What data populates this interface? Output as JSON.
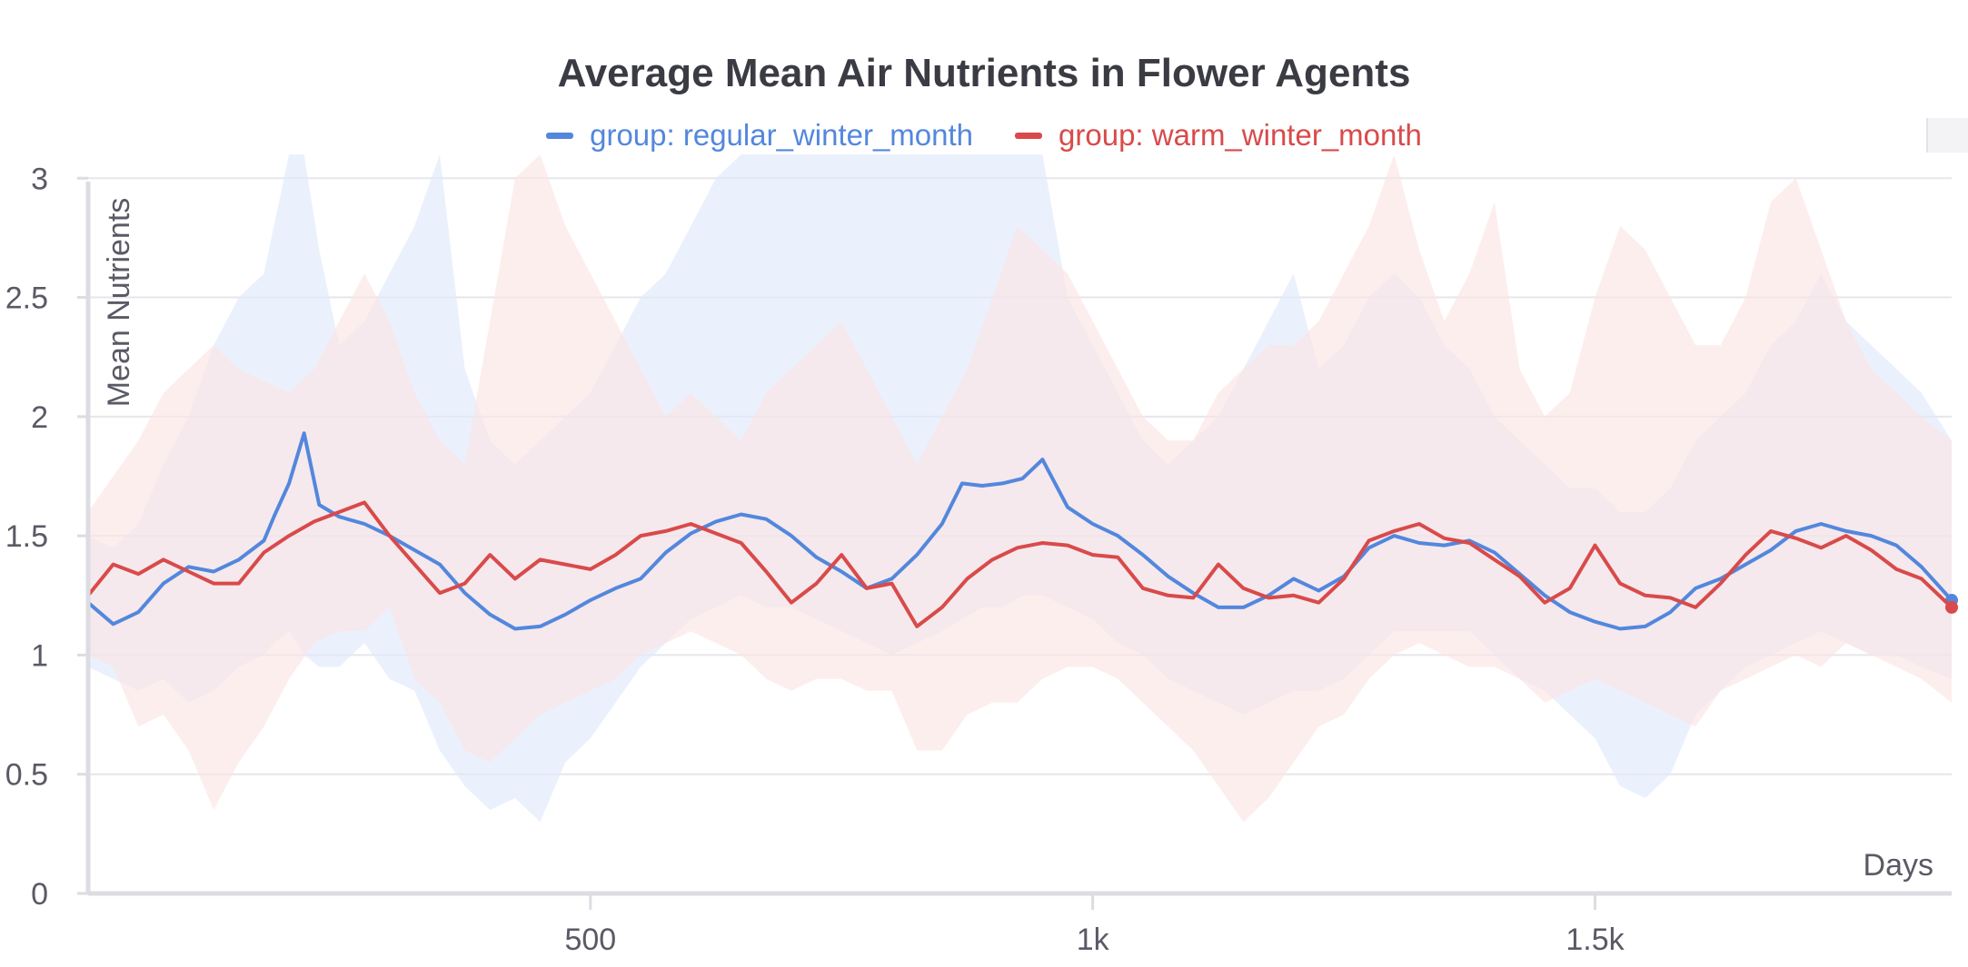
{
  "chart_data": {
    "type": "line",
    "title": "Average Mean Air Nutrients in Flower Agents",
    "xlabel": "Days",
    "ylabel": "Mean Nutrients",
    "xlim": [
      0,
      1855
    ],
    "ylim": [
      0,
      3.1
    ],
    "x_ticks": [
      {
        "value": 500,
        "label": "500"
      },
      {
        "value": 1000,
        "label": "1k"
      },
      {
        "value": 1500,
        "label": "1.5k"
      }
    ],
    "y_ticks": [
      {
        "value": 0,
        "label": "0"
      },
      {
        "value": 0.5,
        "label": "0.5"
      },
      {
        "value": 1,
        "label": "1"
      },
      {
        "value": 1.5,
        "label": "1.5"
      },
      {
        "value": 2,
        "label": "2"
      },
      {
        "value": 2.5,
        "label": "2.5"
      },
      {
        "value": 3,
        "label": "3"
      }
    ],
    "grid": true,
    "legend_position": "top-center",
    "series": [
      {
        "name": "group: regular_winter_month",
        "color": "#5387dd",
        "band_color": "#dfe8fa",
        "x": [
          0,
          25,
          50,
          75,
          100,
          125,
          150,
          175,
          185,
          200,
          215,
          230,
          250,
          275,
          300,
          325,
          350,
          375,
          400,
          425,
          450,
          475,
          500,
          525,
          550,
          575,
          600,
          625,
          650,
          675,
          700,
          725,
          750,
          775,
          800,
          825,
          850,
          870,
          890,
          910,
          930,
          950,
          975,
          1000,
          1025,
          1050,
          1075,
          1100,
          1125,
          1150,
          1175,
          1200,
          1225,
          1250,
          1275,
          1300,
          1325,
          1350,
          1375,
          1400,
          1425,
          1450,
          1475,
          1500,
          1525,
          1550,
          1575,
          1600,
          1625,
          1650,
          1675,
          1700,
          1725,
          1750,
          1775,
          1800,
          1825,
          1855
        ],
        "values": [
          1.22,
          1.13,
          1.18,
          1.3,
          1.37,
          1.35,
          1.4,
          1.48,
          1.58,
          1.72,
          1.93,
          1.63,
          1.58,
          1.55,
          1.5,
          1.44,
          1.38,
          1.26,
          1.17,
          1.11,
          1.12,
          1.17,
          1.23,
          1.28,
          1.32,
          1.43,
          1.51,
          1.56,
          1.59,
          1.57,
          1.5,
          1.41,
          1.35,
          1.28,
          1.32,
          1.42,
          1.55,
          1.72,
          1.71,
          1.72,
          1.74,
          1.82,
          1.62,
          1.55,
          1.5,
          1.42,
          1.33,
          1.26,
          1.2,
          1.2,
          1.25,
          1.32,
          1.27,
          1.33,
          1.45,
          1.5,
          1.47,
          1.46,
          1.48,
          1.43,
          1.34,
          1.25,
          1.18,
          1.14,
          1.11,
          1.12,
          1.18,
          1.28,
          1.32,
          1.38,
          1.44,
          1.52,
          1.55,
          1.52,
          1.5,
          1.46,
          1.37,
          1.23
        ],
        "lower": [
          0.95,
          0.9,
          0.85,
          0.9,
          0.8,
          0.85,
          0.95,
          1.0,
          1.05,
          1.1,
          1.0,
          0.95,
          0.95,
          1.05,
          0.9,
          0.85,
          0.6,
          0.45,
          0.35,
          0.4,
          0.3,
          0.55,
          0.65,
          0.8,
          0.95,
          1.05,
          1.15,
          1.2,
          1.25,
          1.2,
          1.2,
          1.15,
          1.1,
          1.05,
          1.0,
          1.05,
          1.1,
          1.15,
          1.2,
          1.2,
          1.25,
          1.25,
          1.2,
          1.15,
          1.05,
          1.0,
          0.9,
          0.85,
          0.8,
          0.75,
          0.8,
          0.85,
          0.85,
          0.9,
          1.0,
          1.1,
          1.1,
          1.1,
          1.1,
          1.0,
          0.9,
          0.85,
          0.75,
          0.65,
          0.45,
          0.4,
          0.5,
          0.75,
          0.85,
          0.95,
          1.0,
          1.05,
          1.1,
          1.05,
          1.0,
          1.0,
          0.95,
          0.9
        ],
        "upper": [
          1.5,
          1.45,
          1.55,
          1.8,
          2.0,
          2.3,
          2.5,
          2.6,
          2.8,
          3.2,
          3.3,
          2.7,
          2.3,
          2.4,
          2.6,
          2.8,
          3.1,
          2.2,
          1.9,
          1.8,
          1.9,
          2.0,
          2.1,
          2.3,
          2.5,
          2.6,
          2.8,
          3.0,
          3.3,
          3.3,
          3.3,
          3.3,
          3.3,
          3.3,
          3.3,
          3.3,
          3.3,
          3.3,
          3.3,
          3.3,
          3.3,
          3.3,
          2.5,
          2.3,
          2.1,
          1.9,
          1.8,
          1.9,
          2.0,
          2.2,
          2.4,
          2.6,
          2.2,
          2.3,
          2.5,
          2.6,
          2.5,
          2.3,
          2.2,
          2.0,
          1.9,
          1.8,
          1.7,
          1.7,
          1.6,
          1.6,
          1.7,
          1.9,
          2.0,
          2.1,
          2.3,
          2.4,
          2.6,
          2.4,
          2.3,
          2.2,
          2.1,
          1.9
        ]
      },
      {
        "name": "group: warm_winter_month",
        "color": "#d94a4a",
        "band_color": "#fbe3e3",
        "x": [
          0,
          25,
          50,
          75,
          100,
          125,
          150,
          175,
          200,
          225,
          250,
          275,
          300,
          325,
          350,
          375,
          400,
          425,
          450,
          475,
          500,
          525,
          550,
          575,
          600,
          625,
          650,
          675,
          700,
          725,
          750,
          775,
          800,
          825,
          850,
          875,
          900,
          925,
          950,
          975,
          1000,
          1025,
          1050,
          1075,
          1100,
          1125,
          1150,
          1175,
          1200,
          1225,
          1250,
          1275,
          1300,
          1325,
          1350,
          1375,
          1400,
          1425,
          1450,
          1475,
          1500,
          1525,
          1550,
          1575,
          1600,
          1625,
          1650,
          1675,
          1700,
          1725,
          1750,
          1775,
          1800,
          1825,
          1855
        ],
        "values": [
          1.25,
          1.38,
          1.34,
          1.4,
          1.35,
          1.3,
          1.3,
          1.43,
          1.5,
          1.56,
          1.6,
          1.64,
          1.5,
          1.38,
          1.26,
          1.3,
          1.42,
          1.32,
          1.4,
          1.38,
          1.36,
          1.42,
          1.5,
          1.52,
          1.55,
          1.51,
          1.47,
          1.35,
          1.22,
          1.3,
          1.42,
          1.28,
          1.3,
          1.12,
          1.2,
          1.32,
          1.4,
          1.45,
          1.47,
          1.46,
          1.42,
          1.41,
          1.28,
          1.25,
          1.24,
          1.38,
          1.28,
          1.24,
          1.25,
          1.22,
          1.32,
          1.48,
          1.52,
          1.55,
          1.49,
          1.47,
          1.4,
          1.33,
          1.22,
          1.28,
          1.46,
          1.3,
          1.25,
          1.24,
          1.2,
          1.3,
          1.42,
          1.52,
          1.49,
          1.45,
          1.5,
          1.44,
          1.36,
          1.32,
          1.2
        ],
        "lower": [
          1.0,
          0.95,
          0.7,
          0.75,
          0.6,
          0.35,
          0.55,
          0.7,
          0.9,
          1.05,
          1.1,
          1.1,
          1.2,
          0.9,
          0.8,
          0.6,
          0.55,
          0.65,
          0.75,
          0.8,
          0.85,
          0.9,
          1.0,
          1.05,
          1.1,
          1.05,
          1.0,
          0.9,
          0.85,
          0.9,
          0.9,
          0.85,
          0.85,
          0.6,
          0.6,
          0.75,
          0.8,
          0.8,
          0.9,
          0.95,
          0.95,
          0.9,
          0.8,
          0.7,
          0.6,
          0.45,
          0.3,
          0.4,
          0.55,
          0.7,
          0.75,
          0.9,
          1.0,
          1.05,
          1.0,
          0.95,
          0.95,
          0.9,
          0.8,
          0.85,
          0.9,
          0.85,
          0.8,
          0.75,
          0.7,
          0.85,
          0.9,
          0.95,
          1.0,
          0.95,
          1.05,
          1.0,
          0.95,
          0.9,
          0.8
        ],
        "upper": [
          1.6,
          1.75,
          1.9,
          2.1,
          2.2,
          2.3,
          2.2,
          2.15,
          2.1,
          2.2,
          2.4,
          2.6,
          2.4,
          2.1,
          1.9,
          1.8,
          2.4,
          3.0,
          3.25,
          2.8,
          2.6,
          2.4,
          2.2,
          2.0,
          2.1,
          2.0,
          1.9,
          2.1,
          2.2,
          2.3,
          2.4,
          2.2,
          2.0,
          1.8,
          2.0,
          2.2,
          2.5,
          2.8,
          2.7,
          2.6,
          2.4,
          2.2,
          2.0,
          1.9,
          1.9,
          2.1,
          2.2,
          2.3,
          2.3,
          2.4,
          2.6,
          2.8,
          3.1,
          2.7,
          2.4,
          2.6,
          2.9,
          2.2,
          2.0,
          2.1,
          2.5,
          2.8,
          2.7,
          2.5,
          2.3,
          2.3,
          2.5,
          2.9,
          3.0,
          2.7,
          2.4,
          2.2,
          2.1,
          2.0,
          1.9
        ]
      }
    ]
  }
}
